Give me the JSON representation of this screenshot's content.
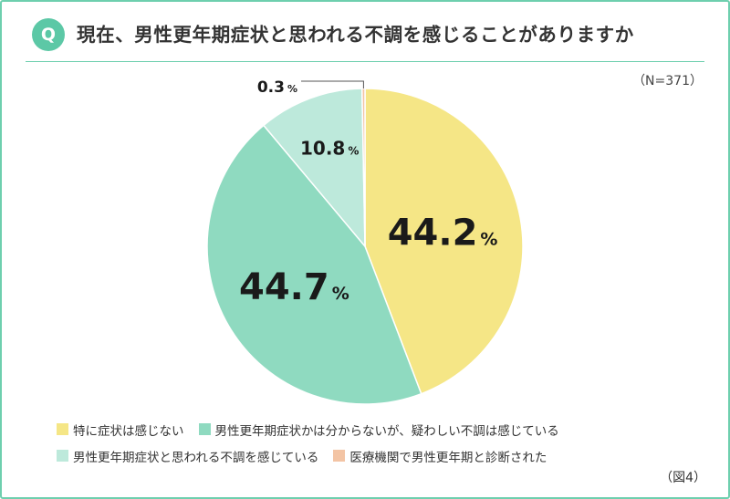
{
  "question_badge": "Q",
  "title": "現在、男性更年期症状と思われる不調を感じることがありますか",
  "sample_size": "（N=371）",
  "figure_label": "（図4）",
  "chart_data": {
    "type": "pie",
    "title": "現在、男性更年期症状と思われる不調を感じることがありますか",
    "unit": "%",
    "start_angle_deg": 0,
    "direction": "clockwise",
    "slices": [
      {
        "label": "特に症状は感じない",
        "value": 44.2,
        "display": "44.2",
        "color": "#f5e686"
      },
      {
        "label": "男性更年期症状かは分からないが、疑わしい不調は感じている",
        "value": 44.7,
        "display": "44.7",
        "color": "#8fdac0"
      },
      {
        "label": "男性更年期症状と思われる不調を感じている",
        "value": 10.8,
        "display": "10.8",
        "color": "#bde9db"
      },
      {
        "label": "医療機関で男性更年期と診断された",
        "value": 0.3,
        "display": "0.3",
        "color": "#f3c4a4"
      }
    ],
    "legend_position": "bottom"
  }
}
